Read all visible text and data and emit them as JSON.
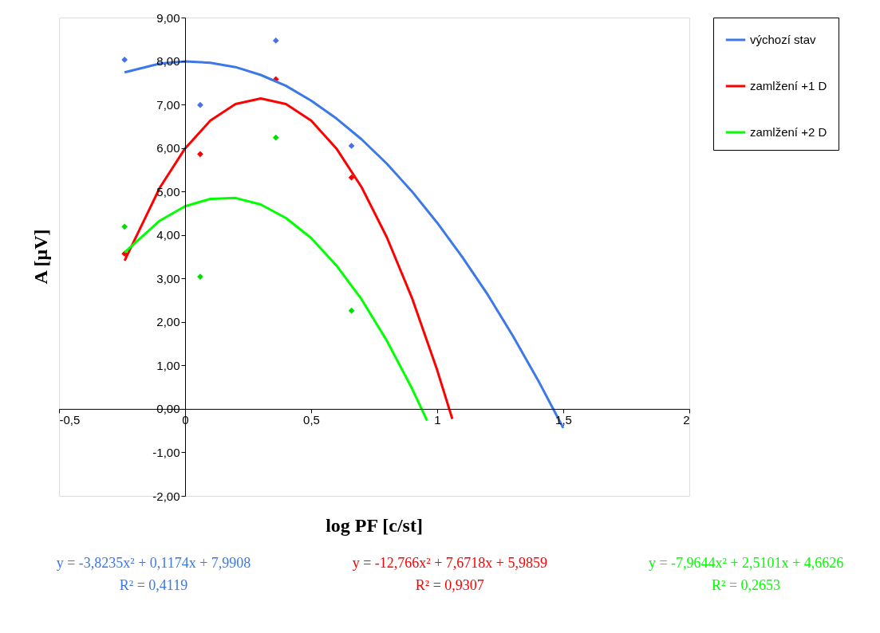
{
  "chart_data": {
    "type": "scatter",
    "xlabel": "log PF [c/st]",
    "ylabel": "A [μV]",
    "xlim": [
      -0.5,
      2
    ],
    "ylim": [
      -2,
      9
    ],
    "xticks": [
      {
        "value": -0.5,
        "label": "-0,5"
      },
      0,
      {
        "value": 0.5,
        "label": "0,5"
      },
      1,
      {
        "value": 1.5,
        "label": "1,5"
      },
      2
    ],
    "yticks": [
      {
        "value": -2,
        "label": "-2,00"
      },
      {
        "value": -1,
        "label": "-1,00"
      },
      {
        "value": 0,
        "label": "0,00"
      },
      {
        "value": 1,
        "label": "1,00"
      },
      {
        "value": 2,
        "label": "2,00"
      },
      {
        "value": 3,
        "label": "3,00"
      },
      {
        "value": 4,
        "label": "4,00"
      },
      {
        "value": 5,
        "label": "5,00"
      },
      {
        "value": 6,
        "label": "6,00"
      },
      {
        "value": 7,
        "label": "7,00"
      },
      {
        "value": 8,
        "label": "8,00"
      },
      {
        "value": 9,
        "label": "9,00"
      }
    ],
    "grid": false,
    "legend": "right",
    "marker": "diamond",
    "series": [
      {
        "color": "#4472e8",
        "x": [
          -0.24,
          0.06,
          0.36,
          0.66
        ],
        "values": [
          8.03,
          6.99,
          8.47,
          6.05
        ]
      },
      {
        "color": "#ff0000",
        "x": [
          -0.24,
          0.06,
          0.36,
          0.66
        ],
        "values": [
          3.57,
          5.86,
          7.58,
          5.32
        ]
      },
      {
        "color": "#00e000",
        "x": [
          -0.24,
          0.06,
          0.36,
          0.66
        ],
        "values": [
          4.19,
          3.04,
          6.24,
          2.26
        ]
      },
      {
        "type": "line",
        "name": "výchozí stav",
        "color": "#3c78e8",
        "marker": "none",
        "line_style": "solid",
        "x": [
          -0.24,
          -0.1,
          0,
          0.1,
          0.2,
          0.3,
          0.4,
          0.5,
          0.6,
          0.7,
          0.8,
          0.9,
          1.0,
          1.1,
          1.2,
          1.3,
          1.4,
          1.5
        ],
        "values": [
          7.74,
          7.94,
          7.99,
          7.96,
          7.86,
          7.68,
          7.43,
          7.09,
          6.68,
          6.2,
          5.64,
          5.0,
          4.28,
          3.49,
          2.63,
          1.68,
          0.66,
          -0.44
        ]
      },
      {
        "type": "line",
        "name": "zamlžení +1 D",
        "color": "#ff0000",
        "marker": "none",
        "line_style": "solid",
        "x": [
          -0.24,
          -0.1,
          0,
          0.1,
          0.2,
          0.3,
          0.4,
          0.5,
          0.6,
          0.7,
          0.8,
          0.9,
          1.0,
          1.06
        ],
        "values": [
          3.41,
          5.09,
          5.99,
          6.63,
          7.01,
          7.14,
          7.01,
          6.63,
          5.99,
          5.1,
          3.95,
          2.55,
          0.89,
          -0.23
        ]
      },
      {
        "type": "line",
        "name": "zamlžení +2 D",
        "color": "#00ff00",
        "marker": "none",
        "line_style": "solid",
        "x": [
          -0.24,
          -0.1,
          0,
          0.1,
          0.2,
          0.3,
          0.4,
          0.5,
          0.6,
          0.7,
          0.8,
          0.9,
          0.96
        ],
        "values": [
          3.6,
          4.33,
          4.66,
          4.83,
          4.85,
          4.7,
          4.39,
          3.93,
          3.3,
          2.52,
          1.57,
          0.47,
          -0.27
        ]
      }
    ],
    "annotations": [
      "y = -3,8235x² + 0,1174x + 7,9908",
      "y = -12,766x² + 7,6718x + 5,9859",
      "y = -7,9644x² + 2,5101x + 4,6626",
      "R² = 0,4119",
      "R² = 0,9307",
      "R² = 0,2653"
    ]
  }
}
